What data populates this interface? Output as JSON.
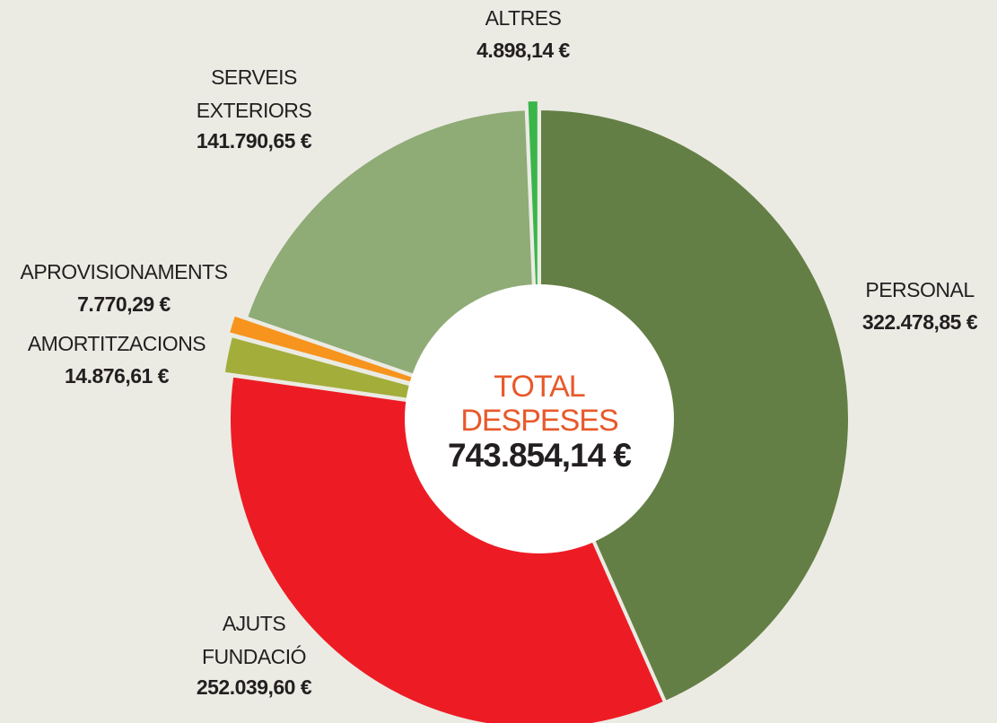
{
  "chart_data": {
    "type": "donut",
    "categories": [
      "PERSONAL",
      "AJUTS FUNDACIÓ",
      "AMORTITZACIONS",
      "APROVISIONAMENTS",
      "SERVEIS EXTERIORS",
      "ALTRES"
    ],
    "values": [
      322478.85,
      252039.6,
      14876.61,
      7770.29,
      141790.65,
      4898.14
    ],
    "value_labels": [
      "322.478,85 €",
      "252.039,60 €",
      "14.876,61 €",
      "7.770,29 €",
      "141.790,65 €",
      "4.898,14 €"
    ],
    "colors": [
      "#647f45",
      "#ed1c24",
      "#a3ad3a",
      "#f7941d",
      "#8fab76",
      "#3ab54a"
    ],
    "total": {
      "label": "TOTAL DESPESES",
      "value": 743854.14,
      "value_label": "743.854,14 €"
    }
  }
}
